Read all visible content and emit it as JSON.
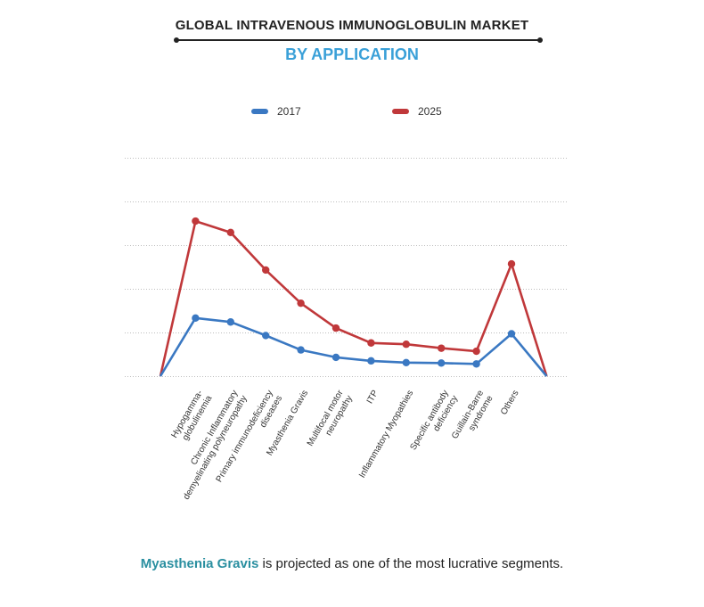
{
  "title": "GLOBAL INTRAVENOUS IMMUNOGLOBULIN MARKET",
  "subtitle": "BY APPLICATION",
  "footnote": {
    "highlight": "Myasthenia Gravis",
    "rest": " is projected as one of the most lucrative segments."
  },
  "chart_data": {
    "type": "line",
    "categories": [
      "",
      "Hypogamma-\nglobulinemia",
      "Chronic Inflammatory\ndemyelinating polyneuropathy",
      "Primary immunodeficiency\ndiseases",
      "Myasthenia Gravis",
      "Multifocal motor\nneuropathy",
      "ITP",
      "Inflammatory Myopathies",
      "Specific antibody\ndeficiency",
      "Guillain-Barre\nsyndrome",
      "Others",
      ""
    ],
    "series": [
      {
        "name": "2017",
        "color": "#3a78c2",
        "values": [
          0,
          1.33,
          1.24,
          0.93,
          0.6,
          0.43,
          0.35,
          0.31,
          0.3,
          0.28,
          0.97,
          0
        ]
      },
      {
        "name": "2025",
        "color": "#c0383a",
        "values": [
          0,
          3.55,
          3.29,
          2.43,
          1.67,
          1.1,
          0.76,
          0.73,
          0.64,
          0.57,
          2.57,
          0
        ]
      }
    ],
    "ylim": [
      0,
      5
    ],
    "grid": true,
    "legend_position": "top-center"
  }
}
